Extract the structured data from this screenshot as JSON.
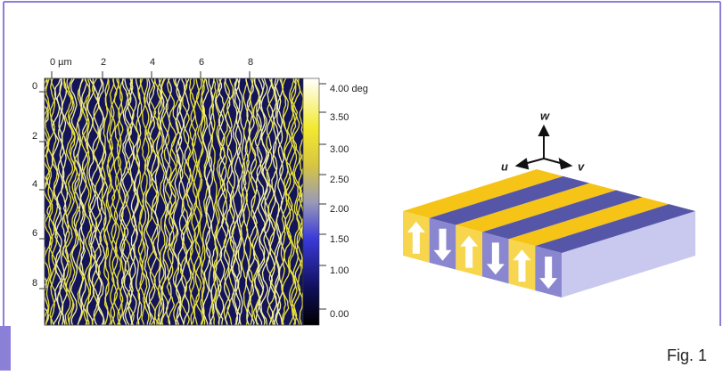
{
  "map": {
    "x_ticks": [
      "0 µm",
      "2",
      "4",
      "6",
      "8"
    ],
    "y_ticks": [
      "0",
      "2",
      "4",
      "6",
      "8"
    ]
  },
  "colorbar": {
    "labels": [
      "4.00 deg",
      "3.50",
      "3.00",
      "2.50",
      "2.00",
      "1.50",
      "1.00",
      "0.00"
    ]
  },
  "diagram": {
    "axes": [
      "w",
      "u",
      "v"
    ]
  },
  "caption": "Fig. 1"
}
